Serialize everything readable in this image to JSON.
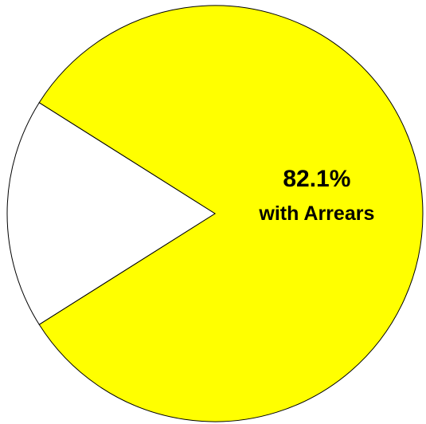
{
  "chart_data": {
    "type": "pie",
    "categories": [
      "with Arrears",
      null
    ],
    "values": [
      82.1,
      17.9
    ],
    "value_labels": [
      "82.1%",
      null
    ],
    "colors": [
      "#ffff00",
      "#ffffff"
    ]
  }
}
